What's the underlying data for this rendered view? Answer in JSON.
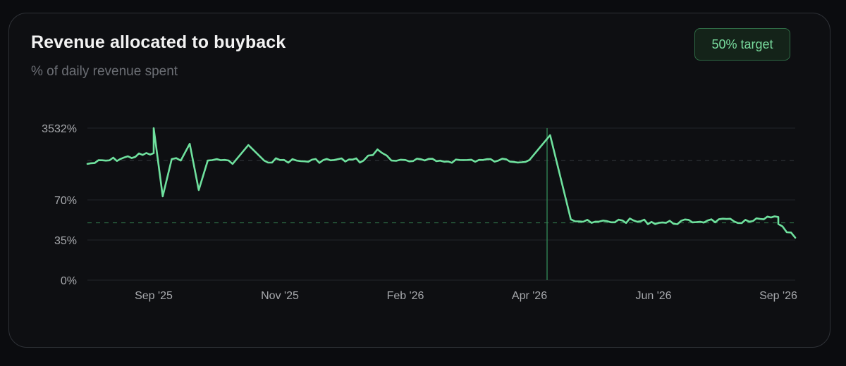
{
  "card": {
    "title": "Revenue allocated to buyback",
    "subtitle": "% of daily revenue spent",
    "badge": "50% target"
  },
  "colors": {
    "line": "#6fe19e",
    "target": "#2e6f47",
    "grid": "#23262b",
    "marker": "#2f7c4f"
  },
  "chart_data": {
    "type": "line",
    "title": "Revenue allocated to buyback",
    "subtitle": "% of daily revenue spent",
    "xlabel": "",
    "ylabel": "",
    "y_scale": "log-like (uneven ticks)",
    "y_ticks": [
      "0%",
      "35%",
      "70%",
      "3532%"
    ],
    "x_ticks": [
      "Sep '25",
      "Nov '25",
      "Feb '26",
      "Apr '26",
      "Jun '26",
      "Sep '26"
    ],
    "grid": true,
    "reference_lines": [
      {
        "label": "50% target",
        "value": 50
      },
      {
        "label": "",
        "value": 600
      }
    ],
    "vertical_marker": "Apr '26",
    "series": [
      {
        "points": [
          [
            "Aug '25",
            500
          ],
          [
            "Aug '25",
            900
          ],
          [
            "Sep '25",
            3532
          ],
          [
            "Sep '25",
            85
          ],
          [
            "Sep '25",
            650
          ],
          [
            "Sep '25",
            600
          ],
          [
            "Sep '25",
            1500
          ],
          [
            "Sep '25",
            120
          ],
          [
            "Sep '25",
            600
          ],
          [
            "Oct '25",
            650
          ],
          [
            "Oct '25",
            500
          ],
          [
            "Oct '25",
            1400
          ],
          [
            "Oct '25",
            600
          ],
          [
            "Nov '25",
            620
          ],
          [
            "Nov '25",
            580
          ],
          [
            "Dec '25",
            620
          ],
          [
            "Jan '26",
            600
          ],
          [
            "Jan '26",
            1100
          ],
          [
            "Jan '26",
            600
          ],
          [
            "Feb '26",
            620
          ],
          [
            "Feb '26",
            580
          ],
          [
            "Mar '26",
            620
          ],
          [
            "Mar '26",
            600
          ],
          [
            "Apr '26",
            620
          ],
          [
            "Apr '26",
            2400
          ],
          [
            "Apr '26",
            53
          ],
          [
            "May '26",
            50
          ],
          [
            "May '26",
            52
          ],
          [
            "Jun '26",
            50
          ],
          [
            "Jul '26",
            52
          ],
          [
            "Aug '26",
            51
          ],
          [
            "Sep '26",
            55
          ],
          [
            "Sep '26",
            49
          ],
          [
            "Sep '26",
            37
          ]
        ]
      }
    ]
  }
}
